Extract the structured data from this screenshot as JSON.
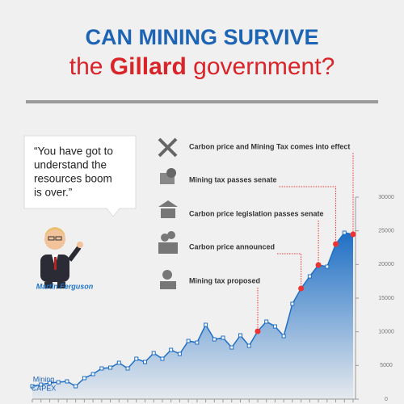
{
  "header": {
    "line1": "CAN MINING SURVIVE",
    "line2_pre": "the ",
    "line2_bold": "Gillard",
    "line2_post": " government?"
  },
  "quote": {
    "text": [
      "“You have got to",
      "understand the",
      "resources boom",
      "is over.”"
    ],
    "author": "Martin Ferguson"
  },
  "events": [
    {
      "label": "Carbon price and Mining Tax comes into effect",
      "point": 37
    },
    {
      "label": "Mining tax passes senate",
      "point": 35
    },
    {
      "label": "Carbon price legislation passes senate",
      "point": 33
    },
    {
      "label": "Carbon price announced",
      "point": 31
    },
    {
      "label": "Mining tax proposed",
      "point": 26
    }
  ],
  "chart_data": {
    "type": "area",
    "label": [
      "Mining",
      "CAPEX"
    ],
    "color": "#1f6fc5",
    "values": [
      1920,
      2160,
      2400,
      2520,
      2640,
      1920,
      3120,
      3720,
      4560,
      4680,
      5400,
      4560,
      6000,
      5520,
      6840,
      6000,
      7320,
      6720,
      8640,
      8400,
      11040,
      8880,
      9120,
      7680,
      9480,
      7920,
      10080,
      11520,
      10800,
      9360,
      14160,
      16440,
      18240,
      19920,
      19680,
      23040,
      24720,
      24480
    ],
    "ylim": [
      0,
      30000
    ],
    "yticks": [
      0,
      5000,
      10000,
      15000,
      20000,
      25000,
      30000
    ]
  }
}
